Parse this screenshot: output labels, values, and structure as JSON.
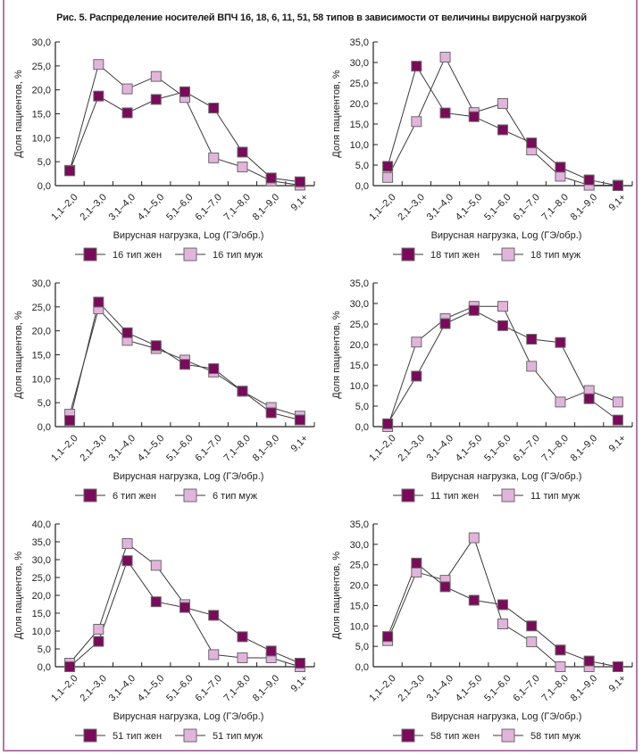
{
  "figure": {
    "title": "Рис. 5. Распределение носителей ВПЧ 16, 18, 6, 11, 51, 58 типов в зависимости от величины вирусной нагрузкой",
    "colors": {
      "female_fill": "#7a0a5a",
      "male_fill": "#e2b4dc",
      "marker_stroke": "#6a6a6a",
      "line": "#3a3a3a",
      "frame": "#b07aa8"
    }
  },
  "chart_data": [
    {
      "type": "line",
      "title": "",
      "xlabel": "Вирусная нагрузка, Log (ГЭ/обр.)",
      "ylabel": "Доля пациентов, %",
      "ylim": [
        0,
        30
      ],
      "yticks": [
        "0,0",
        "5,0",
        "10,0",
        "15,0",
        "20,0",
        "25,0",
        "30,0"
      ],
      "ytick_values": [
        0,
        5,
        10,
        15,
        20,
        25,
        30
      ],
      "grid": false,
      "legend": "bottom",
      "categories": [
        "1,1–2,0",
        "2,1–3,0",
        "3,1–4,0",
        "4,1–5,0",
        "5,1–6,0",
        "6,1–7,0",
        "7,1–8,0",
        "8,1–9,0",
        "9,1+"
      ],
      "series": [
        {
          "name": "16 тип жен",
          "role": "female",
          "values": [
            3.1,
            18.7,
            15.2,
            18.0,
            19.6,
            16.2,
            7.0,
            1.6,
            0.8
          ]
        },
        {
          "name": "16 тип муж",
          "role": "male",
          "values": [
            3.2,
            25.3,
            20.2,
            22.8,
            18.4,
            5.8,
            3.9,
            1.0,
            0.1
          ]
        }
      ]
    },
    {
      "type": "line",
      "title": "",
      "xlabel": "Вирусная нагрузка, Log (ГЭ/обр.)",
      "ylabel": "Доля пациентов, %",
      "ylim": [
        0,
        35
      ],
      "yticks": [
        "0,0",
        "5,0",
        "10,0",
        "15,0",
        "20,0",
        "25,0",
        "30,0",
        "35,0"
      ],
      "ytick_values": [
        0,
        5,
        10,
        15,
        20,
        25,
        30,
        35
      ],
      "grid": false,
      "legend": "bottom",
      "categories": [
        "1,1–2,0",
        "2,1–3,0",
        "3,1–4,0",
        "4,1–5,0",
        "5,1–6,0",
        "6,1–7,0",
        "7,1–8,0",
        "8,1–9,0",
        "9,1+"
      ],
      "series": [
        {
          "name": "18 тип жен",
          "role": "female",
          "values": [
            4.7,
            29.1,
            17.7,
            16.8,
            13.6,
            10.4,
            4.5,
            1.4,
            0.0
          ]
        },
        {
          "name": "18 тип муж",
          "role": "male",
          "values": [
            2.0,
            15.6,
            31.3,
            17.8,
            20.0,
            8.7,
            2.3,
            0.1,
            0.1
          ]
        }
      ]
    },
    {
      "type": "line",
      "title": "",
      "xlabel": "Вирусная нагрузка, Log (ГЭ/обр.)",
      "ylabel": "Доля пациентов, %",
      "ylim": [
        0,
        30
      ],
      "yticks": [
        "0,0",
        "5,0",
        "10,0",
        "15,0",
        "20,0",
        "25,0",
        "30,0"
      ],
      "ytick_values": [
        0,
        5,
        10,
        15,
        20,
        25,
        30
      ],
      "grid": false,
      "legend": "bottom",
      "categories": [
        "1,1–2,0",
        "2,1–3,0",
        "3,1–4,0",
        "4,1–5,0",
        "5,1–6,0",
        "6,1–7,0",
        "7,1–8,0",
        "8,1–9,0",
        "9,1+"
      ],
      "series": [
        {
          "name": "6 тип жен",
          "role": "female",
          "values": [
            1.3,
            26.0,
            19.6,
            16.9,
            13.0,
            12.1,
            7.4,
            2.9,
            1.4
          ]
        },
        {
          "name": "6 тип муж",
          "role": "male",
          "values": [
            2.6,
            24.6,
            18.0,
            16.3,
            13.9,
            11.4,
            7.4,
            4.0,
            2.2
          ]
        }
      ]
    },
    {
      "type": "line",
      "title": "",
      "xlabel": "Вирусная нагрузка, Log (ГЭ/обр.)",
      "ylabel": "Доля пациентов, %",
      "ylim": [
        0,
        35
      ],
      "yticks": [
        "0,0",
        "5,0",
        "10,0",
        "15,0",
        "20,0",
        "25,0",
        "30,0",
        "35,0"
      ],
      "ytick_values": [
        0,
        5,
        10,
        15,
        20,
        25,
        30,
        35
      ],
      "grid": false,
      "legend": "bottom",
      "categories": [
        "1,1–2,0",
        "2,1–3,0",
        "3,1–4,0",
        "4,1–5,0",
        "5,1–6,0",
        "6,1–7,0",
        "7,1–8,0",
        "8,1–9,0",
        "9,1+"
      ],
      "series": [
        {
          "name": "11 тип жен",
          "role": "female",
          "values": [
            0.7,
            12.3,
            25.1,
            28.3,
            24.6,
            21.3,
            20.5,
            6.8,
            1.6
          ]
        },
        {
          "name": "11 тип муж",
          "role": "male",
          "values": [
            0.0,
            20.6,
            26.3,
            29.3,
            29.3,
            14.7,
            6.0,
            8.8,
            6.0
          ]
        }
      ]
    },
    {
      "type": "line",
      "title": "",
      "xlabel": "Вирусная нагрузка, Log (ГЭ/обр.)",
      "ylabel": "Доля пациентов, %",
      "ylim": [
        0,
        40
      ],
      "yticks": [
        "0,0",
        "5,0",
        "10,0",
        "15,0",
        "20,0",
        "25,0",
        "30,0",
        "35,0",
        "40,0"
      ],
      "ytick_values": [
        0,
        5,
        10,
        15,
        20,
        25,
        30,
        35,
        40
      ],
      "grid": false,
      "legend": "bottom",
      "categories": [
        "1,1–2,0",
        "2,1–3,0",
        "3,1–4,0",
        "4,1–5,0",
        "5,1–6,0",
        "6,1–7,0",
        "7,1–8,0",
        "8,1–9,0",
        "9,1+"
      ],
      "series": [
        {
          "name": "51 тип жен",
          "role": "female",
          "values": [
            0.0,
            7.1,
            29.7,
            18.2,
            16.6,
            14.4,
            8.4,
            4.4,
            1.0
          ]
        },
        {
          "name": "51 тип муж",
          "role": "male",
          "values": [
            1.0,
            10.5,
            34.5,
            28.4,
            17.4,
            3.4,
            2.5,
            2.5,
            0.0
          ]
        }
      ]
    },
    {
      "type": "line",
      "title": "",
      "xlabel": "Вирусная нагрузка, Log (ГЭ/обр.)",
      "ylabel": "Доля пациентов, %",
      "ylim": [
        0,
        35
      ],
      "yticks": [
        "0,0",
        "5,0",
        "10,0",
        "15,0",
        "20,0",
        "25,0",
        "30,0",
        "35,0"
      ],
      "ytick_values": [
        0,
        5,
        10,
        15,
        20,
        25,
        30,
        35
      ],
      "grid": false,
      "legend": "bottom",
      "categories": [
        "1,1–2,0",
        "2,1–3,0",
        "3,1–4,0",
        "4,1–5,0",
        "5,1–6,0",
        "6,1–7,0",
        "7,1–8,0",
        "8,1–9,0",
        "9,1+"
      ],
      "series": [
        {
          "name": "58 тип жен",
          "role": "female",
          "values": [
            7.4,
            25.4,
            19.6,
            16.3,
            15.2,
            10.0,
            4.1,
            1.4,
            0.0
          ]
        },
        {
          "name": "58 тип муж",
          "role": "male",
          "values": [
            6.4,
            23.2,
            21.2,
            31.6,
            10.5,
            6.1,
            0.0,
            0.0,
            0.0
          ]
        }
      ]
    }
  ]
}
